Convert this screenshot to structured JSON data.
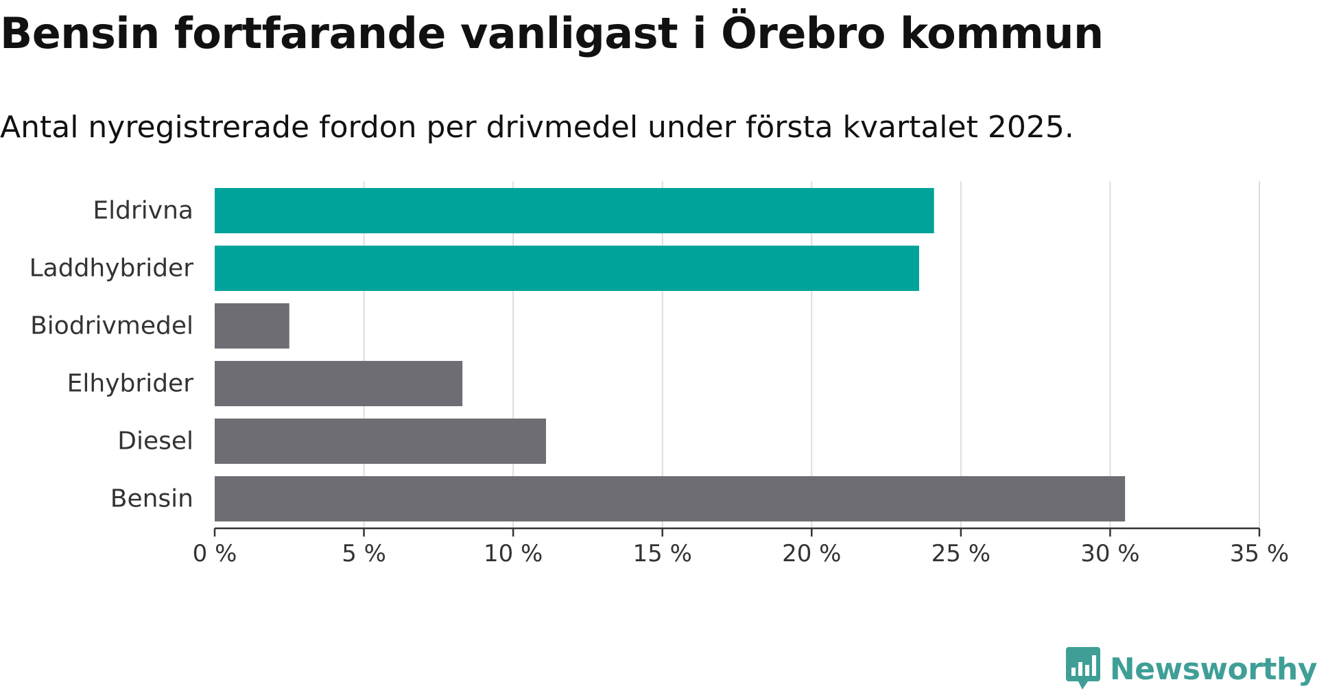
{
  "title": "Bensin fortfarande vanligast i Örebro kommun",
  "subtitle": "Antal nyregistrerade fordon per drivmedel under första kvartalet 2025.",
  "chart_data": {
    "type": "bar",
    "orientation": "horizontal",
    "categories": [
      "Eldrivna",
      "Laddhybrider",
      "Biodrivmedel",
      "Elhybrider",
      "Diesel",
      "Bensin"
    ],
    "values": [
      24.1,
      23.6,
      2.5,
      8.3,
      11.1,
      30.5
    ],
    "highlighted": [
      true,
      true,
      false,
      false,
      false,
      false
    ],
    "xlim": [
      0,
      35
    ],
    "xticks": [
      0,
      5,
      10,
      15,
      20,
      25,
      30,
      35
    ],
    "xtick_labels": [
      "0 %",
      "5 %",
      "10 %",
      "15 %",
      "20 %",
      "25 %",
      "30 %",
      "35 %"
    ],
    "xlabel": "",
    "ylabel": "",
    "grid": "vertical",
    "legend": "none"
  },
  "colors": {
    "highlight": "#00a39a",
    "default": "#6e6d73",
    "grid": "#dddddd",
    "axis": "#333333",
    "brand": "#3f9f97"
  },
  "brand": {
    "name": "Newsworthy",
    "icon": "newsworthy-logo-icon"
  }
}
